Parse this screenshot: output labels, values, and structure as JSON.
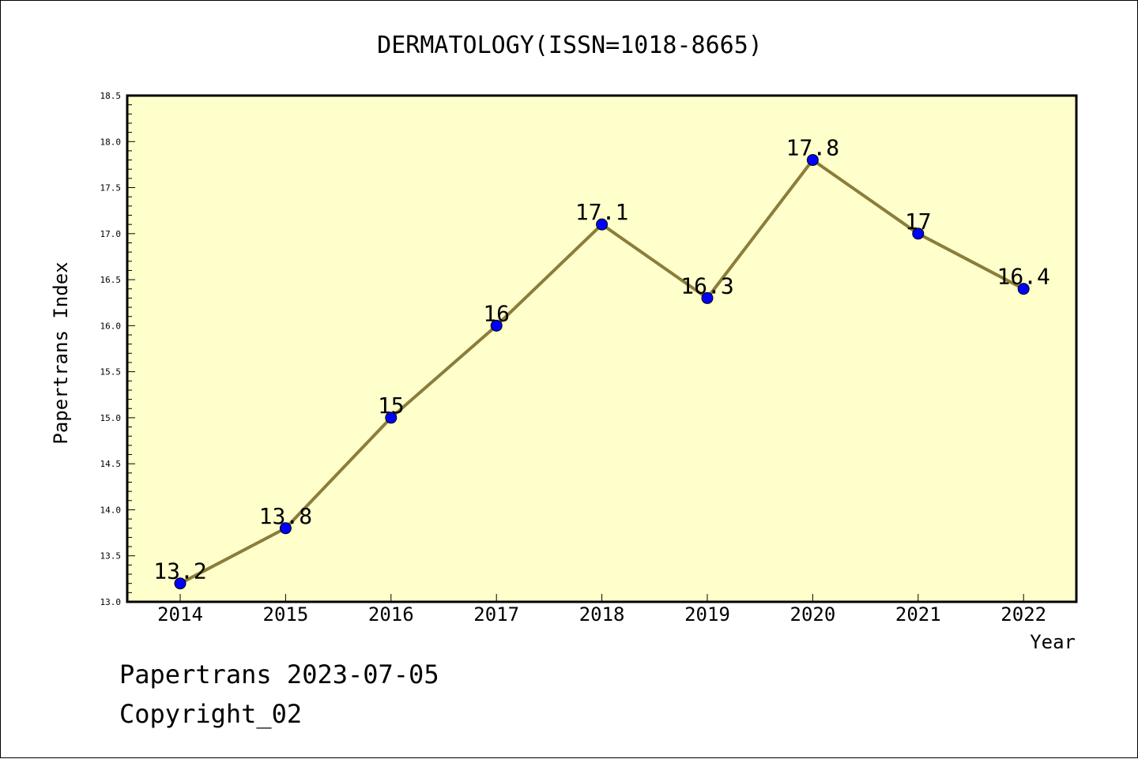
{
  "chart_data": {
    "type": "line",
    "title": "DERMATOLOGY(ISSN=1018-8665)",
    "xlabel": "Year",
    "ylabel": "Papertrans Index",
    "categories": [
      "2014",
      "2015",
      "2016",
      "2017",
      "2018",
      "2019",
      "2020",
      "2021",
      "2022"
    ],
    "values": [
      13.2,
      13.8,
      15,
      16,
      17.1,
      16.3,
      17.8,
      17,
      16.4
    ],
    "data_labels": [
      "13.2",
      "13.8",
      "15",
      "16",
      "17.1",
      "16.3",
      "17.8",
      "17",
      "16.4"
    ],
    "ylim": [
      13.0,
      18.5
    ],
    "y_ticks": [
      "13.0",
      "13.5",
      "14.0",
      "14.5",
      "15.0",
      "15.5",
      "16.0",
      "16.5",
      "17.0",
      "17.5",
      "18.0",
      "18.5"
    ],
    "grid": false,
    "legend": "none",
    "colors": {
      "plot_background": "#ffffcc",
      "line": "#8b7d3a",
      "marker": "#0000ff"
    }
  },
  "footer": {
    "line1": "Papertrans 2023-07-05",
    "line2": "Copyright_02"
  }
}
